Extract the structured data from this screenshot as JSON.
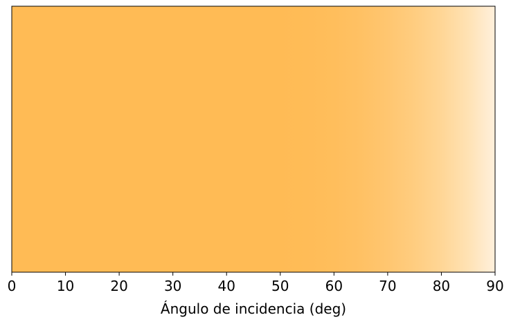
{
  "chart_data": {
    "type": "heatmap",
    "title": "",
    "xlabel": "Ángulo de incidencia (deg)",
    "ylabel": "",
    "xlim": [
      0,
      90
    ],
    "x_ticks": [
      0,
      10,
      20,
      30,
      40,
      50,
      60,
      70,
      80,
      90
    ],
    "x_tick_labels": [
      "0",
      "10",
      "20",
      "30",
      "40",
      "50",
      "60",
      "70",
      "80",
      "90"
    ],
    "y_ticks": [],
    "grid": false,
    "legend": "none",
    "colormap": {
      "x": [
        0,
        10,
        20,
        30,
        40,
        50,
        55,
        60,
        65,
        70,
        75,
        80,
        85,
        90
      ],
      "colors": [
        "#ffbb55",
        "#ffbb55",
        "#ffbb55",
        "#ffbb55",
        "#ffbb55",
        "#ffbb55",
        "#ffbc57",
        "#ffbe5c",
        "#ffc164",
        "#ffc670",
        "#ffcd80",
        "#ffd696",
        "#ffe2b4",
        "#fff0dc"
      ]
    }
  }
}
